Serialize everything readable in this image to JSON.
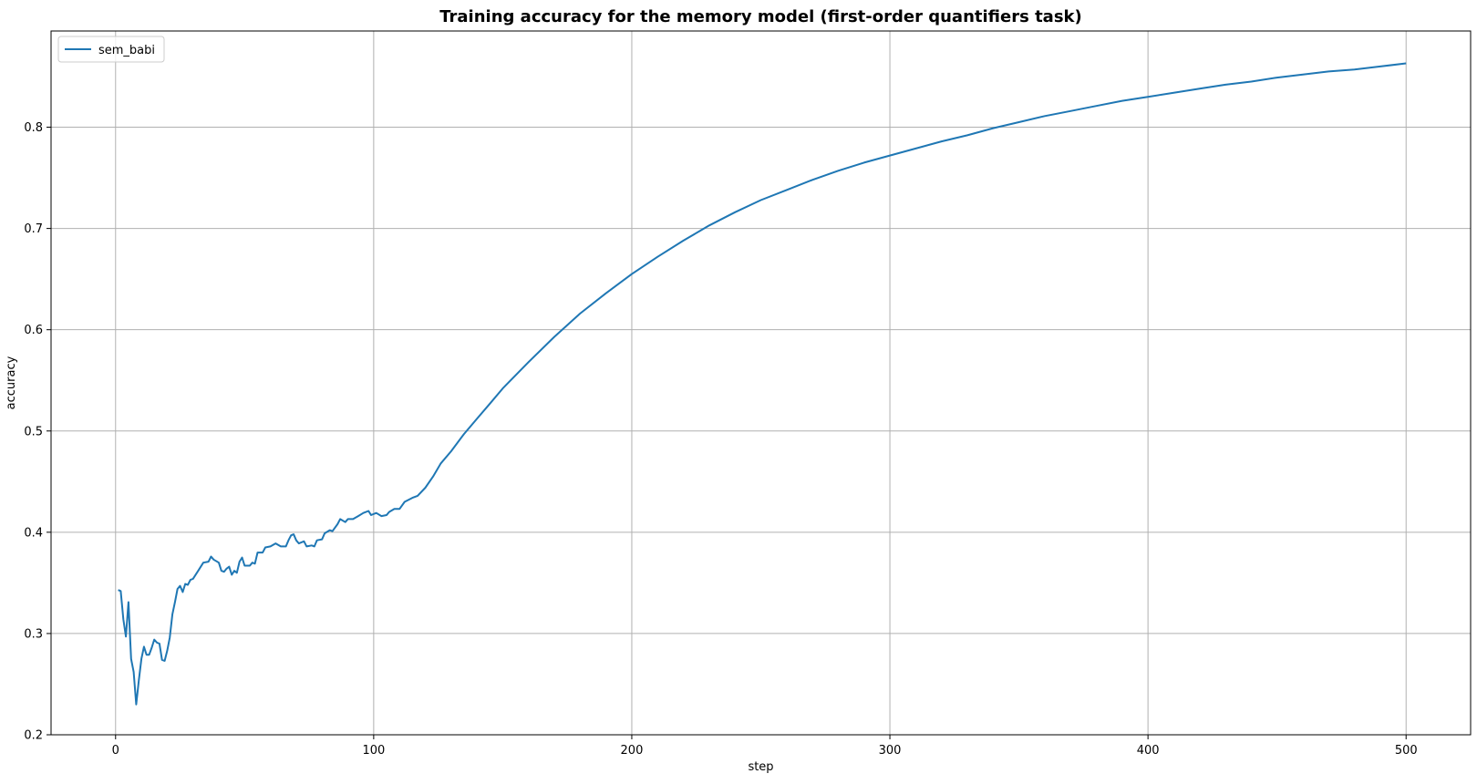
{
  "chart_data": {
    "type": "line",
    "title": "Training accuracy for the memory model (first-order quantifiers task)",
    "xlabel": "step",
    "ylabel": "accuracy",
    "xlim": [
      -25,
      525
    ],
    "ylim": [
      0.2,
      0.895
    ],
    "xticks": [
      0,
      100,
      200,
      300,
      400,
      500
    ],
    "yticks": [
      0.2,
      0.3,
      0.4,
      0.5,
      0.6,
      0.7,
      0.8
    ],
    "grid": true,
    "legend_position": "top-left",
    "series": [
      {
        "name": "sem_babi",
        "color": "#1f77b4",
        "points": [
          [
            1,
            0.343
          ],
          [
            2,
            0.342
          ],
          [
            3,
            0.314
          ],
          [
            4,
            0.297
          ],
          [
            5,
            0.331
          ],
          [
            6,
            0.275
          ],
          [
            7,
            0.262
          ],
          [
            8,
            0.23
          ],
          [
            9,
            0.254
          ],
          [
            10,
            0.275
          ],
          [
            11,
            0.287
          ],
          [
            12,
            0.279
          ],
          [
            13,
            0.279
          ],
          [
            14,
            0.286
          ],
          [
            15,
            0.294
          ],
          [
            16,
            0.291
          ],
          [
            17,
            0.29
          ],
          [
            18,
            0.274
          ],
          [
            19,
            0.273
          ],
          [
            20,
            0.283
          ],
          [
            21,
            0.296
          ],
          [
            22,
            0.319
          ],
          [
            23,
            0.331
          ],
          [
            24,
            0.344
          ],
          [
            25,
            0.347
          ],
          [
            26,
            0.341
          ],
          [
            27,
            0.349
          ],
          [
            28,
            0.348
          ],
          [
            29,
            0.353
          ],
          [
            30,
            0.354
          ],
          [
            32,
            0.362
          ],
          [
            34,
            0.37
          ],
          [
            36,
            0.371
          ],
          [
            37,
            0.376
          ],
          [
            38,
            0.373
          ],
          [
            40,
            0.37
          ],
          [
            41,
            0.362
          ],
          [
            42,
            0.361
          ],
          [
            43,
            0.364
          ],
          [
            44,
            0.366
          ],
          [
            45,
            0.358
          ],
          [
            46,
            0.362
          ],
          [
            47,
            0.36
          ],
          [
            48,
            0.371
          ],
          [
            49,
            0.375
          ],
          [
            50,
            0.367
          ],
          [
            52,
            0.367
          ],
          [
            53,
            0.37
          ],
          [
            54,
            0.369
          ],
          [
            55,
            0.38
          ],
          [
            57,
            0.38
          ],
          [
            58,
            0.385
          ],
          [
            60,
            0.386
          ],
          [
            62,
            0.389
          ],
          [
            64,
            0.386
          ],
          [
            66,
            0.386
          ],
          [
            67,
            0.392
          ],
          [
            68,
            0.397
          ],
          [
            69,
            0.398
          ],
          [
            70,
            0.392
          ],
          [
            71,
            0.389
          ],
          [
            73,
            0.391
          ],
          [
            74,
            0.386
          ],
          [
            76,
            0.387
          ],
          [
            77,
            0.386
          ],
          [
            78,
            0.392
          ],
          [
            80,
            0.393
          ],
          [
            81,
            0.399
          ],
          [
            83,
            0.402
          ],
          [
            84,
            0.401
          ],
          [
            86,
            0.408
          ],
          [
            87,
            0.413
          ],
          [
            89,
            0.41
          ],
          [
            90,
            0.413
          ],
          [
            92,
            0.413
          ],
          [
            94,
            0.416
          ],
          [
            96,
            0.419
          ],
          [
            98,
            0.421
          ],
          [
            99,
            0.417
          ],
          [
            101,
            0.419
          ],
          [
            103,
            0.416
          ],
          [
            105,
            0.417
          ],
          [
            106,
            0.42
          ],
          [
            108,
            0.423
          ],
          [
            110,
            0.423
          ],
          [
            112,
            0.43
          ],
          [
            115,
            0.434
          ],
          [
            117,
            0.436
          ],
          [
            120,
            0.444
          ],
          [
            123,
            0.455
          ],
          [
            126,
            0.468
          ],
          [
            130,
            0.48
          ],
          [
            135,
            0.497
          ],
          [
            140,
            0.512
          ],
          [
            145,
            0.527
          ],
          [
            150,
            0.542
          ],
          [
            160,
            0.568
          ],
          [
            170,
            0.593
          ],
          [
            180,
            0.616
          ],
          [
            190,
            0.636
          ],
          [
            200,
            0.655
          ],
          [
            210,
            0.672
          ],
          [
            220,
            0.688
          ],
          [
            230,
            0.703
          ],
          [
            240,
            0.716
          ],
          [
            250,
            0.728
          ],
          [
            260,
            0.738
          ],
          [
            270,
            0.748
          ],
          [
            280,
            0.757
          ],
          [
            290,
            0.765
          ],
          [
            300,
            0.772
          ],
          [
            310,
            0.779
          ],
          [
            320,
            0.786
          ],
          [
            330,
            0.792
          ],
          [
            340,
            0.799
          ],
          [
            350,
            0.805
          ],
          [
            360,
            0.811
          ],
          [
            370,
            0.816
          ],
          [
            380,
            0.821
          ],
          [
            390,
            0.826
          ],
          [
            400,
            0.83
          ],
          [
            410,
            0.834
          ],
          [
            420,
            0.838
          ],
          [
            430,
            0.842
          ],
          [
            440,
            0.845
          ],
          [
            450,
            0.849
          ],
          [
            460,
            0.852
          ],
          [
            470,
            0.855
          ],
          [
            480,
            0.857
          ],
          [
            490,
            0.86
          ],
          [
            500,
            0.863
          ]
        ]
      }
    ]
  }
}
